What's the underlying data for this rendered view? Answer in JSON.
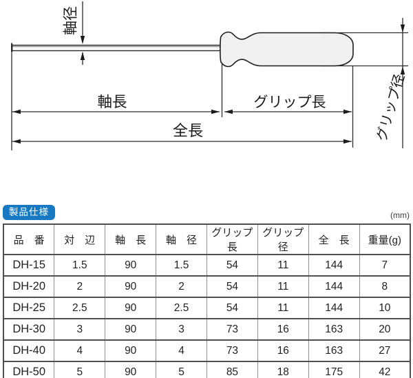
{
  "diagram": {
    "labels": {
      "shaft_diameter": "軸径",
      "shaft_length": "軸長",
      "grip_length": "グリップ長",
      "grip_diameter": "グリップ径",
      "total_length": "全長"
    },
    "colors": {
      "line": "#2b2b2b",
      "grip_fill": "#f1f1f1"
    }
  },
  "spec_section": {
    "badge": "製品仕様",
    "unit_note": "(mm)",
    "table": {
      "headers": [
        "品　番",
        "対　辺",
        "軸　長",
        "軸　径",
        "グリップ長",
        "グリップ径",
        "全　長",
        "重量(g)"
      ],
      "rows": [
        [
          "DH-15",
          "1.5",
          "90",
          "1.5",
          "54",
          "11",
          "144",
          "7"
        ],
        [
          "DH-20",
          "2",
          "90",
          "2",
          "54",
          "11",
          "144",
          "8"
        ],
        [
          "DH-25",
          "2.5",
          "90",
          "2.5",
          "54",
          "11",
          "144",
          "10"
        ],
        [
          "DH-30",
          "3",
          "90",
          "3",
          "73",
          "16",
          "163",
          "20"
        ],
        [
          "DH-40",
          "4",
          "90",
          "4",
          "73",
          "16",
          "163",
          "27"
        ],
        [
          "DH-50",
          "5",
          "90",
          "5",
          "85",
          "18",
          "175",
          "42"
        ]
      ]
    }
  },
  "colors": {
    "badge_blue": "#1779c2",
    "table_border_dark": "#4f4f4f",
    "table_border_light": "#8f8f8f"
  }
}
